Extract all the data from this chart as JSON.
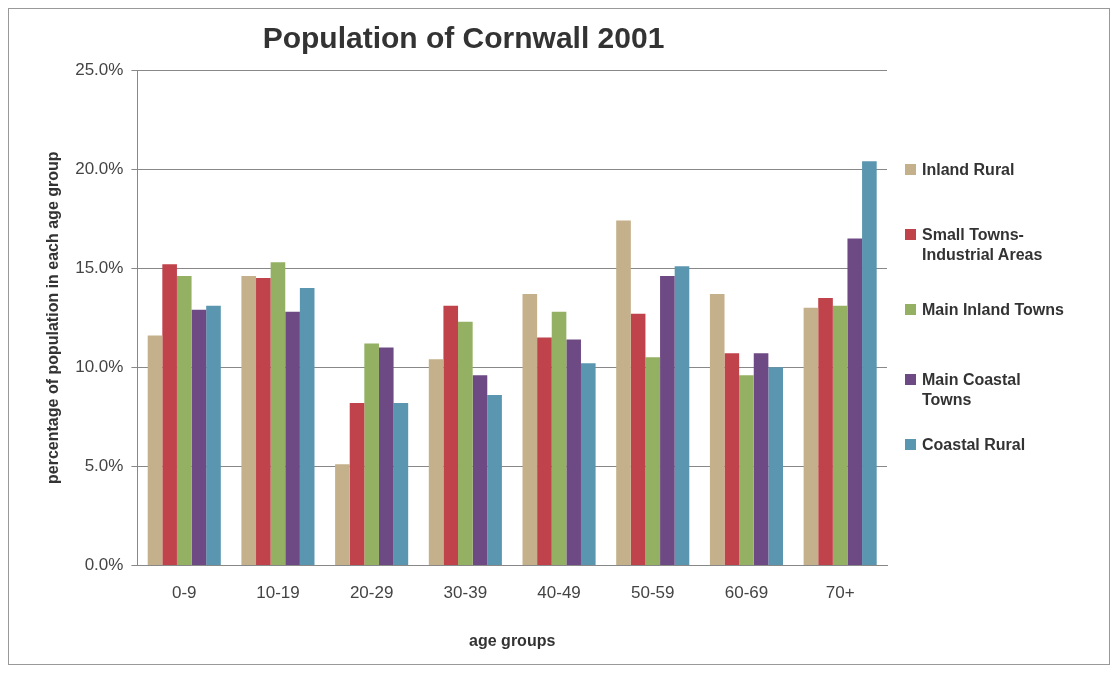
{
  "chart_data": {
    "type": "bar",
    "title": "Population of Cornwall 2001",
    "xlabel": "age groups",
    "ylabel": "percentage of population in each age group",
    "categories": [
      "0-9",
      "10-19",
      "20-29",
      "30-39",
      "40-49",
      "50-59",
      "60-69",
      "70+"
    ],
    "series": [
      {
        "name": "Inland Rural",
        "color": "#c4b08a",
        "values": [
          11.6,
          14.6,
          5.1,
          10.4,
          13.7,
          17.4,
          13.7,
          13.0
        ]
      },
      {
        "name": "Small Towns-Industrial Areas",
        "color": "#c0424a",
        "values": [
          15.2,
          14.5,
          8.2,
          13.1,
          11.5,
          12.7,
          10.7,
          13.5
        ]
      },
      {
        "name": "Main Inland Towns",
        "color": "#94b062",
        "values": [
          14.6,
          15.3,
          11.2,
          12.3,
          12.8,
          10.5,
          9.6,
          13.1
        ]
      },
      {
        "name": "Main Coastal Towns",
        "color": "#6e4a84",
        "values": [
          12.9,
          12.8,
          11.0,
          9.6,
          11.4,
          14.6,
          10.7,
          16.5
        ]
      },
      {
        "name": "Coastal Rural",
        "color": "#5a96b0",
        "values": [
          13.1,
          14.0,
          8.2,
          8.6,
          10.2,
          15.1,
          10.0,
          20.4
        ]
      }
    ],
    "ylim": [
      0,
      25
    ],
    "yticks": [
      {
        "value": 0,
        "label": "0.0%"
      },
      {
        "value": 5,
        "label": "5.0%"
      },
      {
        "value": 10,
        "label": "10.0%"
      },
      {
        "value": 15,
        "label": "15.0%"
      },
      {
        "value": 20,
        "label": "20.0%"
      },
      {
        "value": 25,
        "label": "25.0%"
      }
    ],
    "grid": "y",
    "legend": "right"
  }
}
